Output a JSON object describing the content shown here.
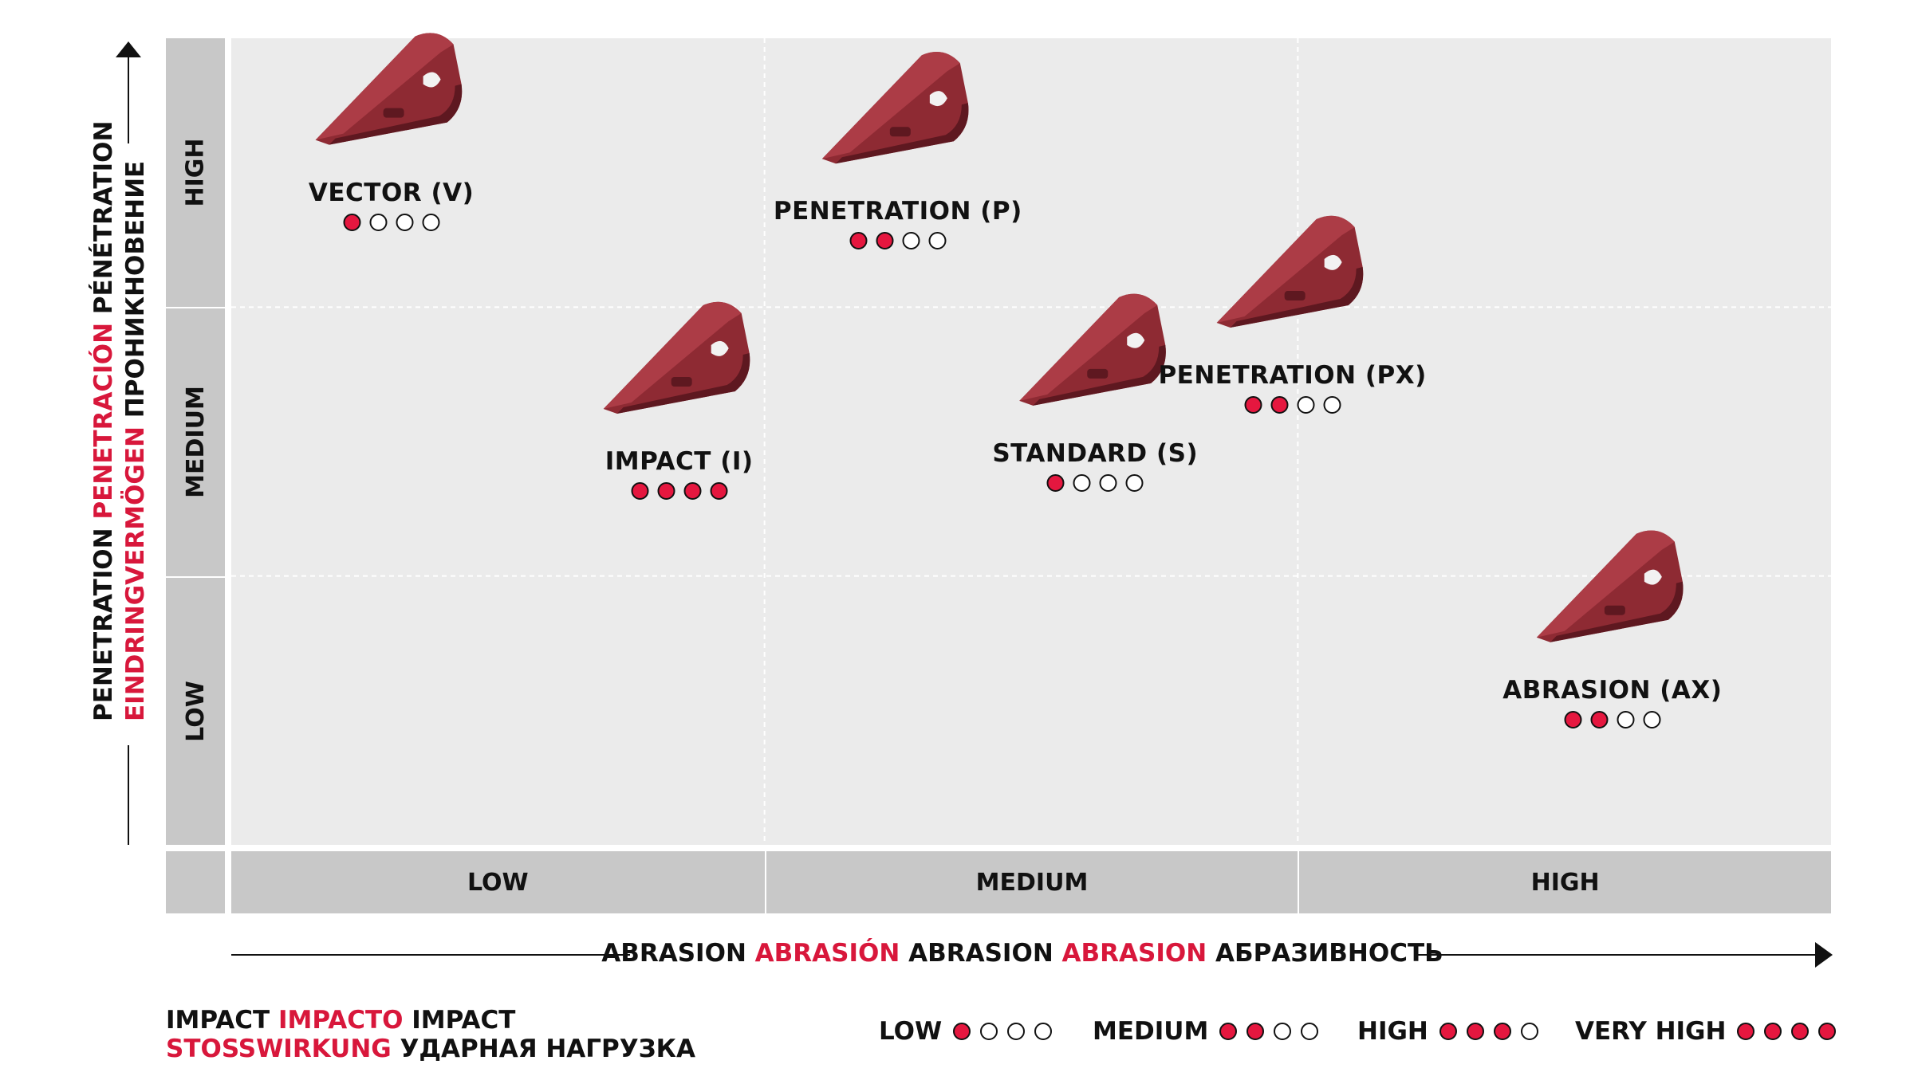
{
  "chart_data": {
    "type": "scatter",
    "title": "",
    "xlabel_parts": [
      {
        "text": "ABRASION",
        "accent": false
      },
      {
        "text": "ABRASIÓN",
        "accent": true
      },
      {
        "text": "ABRASION",
        "accent": false
      },
      {
        "text": "ABRASION",
        "accent": true
      },
      {
        "text": "АБРАЗИВНОСТЬ",
        "accent": false
      }
    ],
    "ylabel_line1": [
      {
        "text": "PENETRATION",
        "accent": false
      },
      {
        "text": "PENETRACIÓN",
        "accent": true
      },
      {
        "text": "PÉNÉTRATION",
        "accent": false
      }
    ],
    "ylabel_line2": [
      {
        "text": "EINDRINGVERMÖGEN",
        "accent": true
      },
      {
        "text": "ПРОНИКНОВЕНИЕ",
        "accent": false
      }
    ],
    "x_categories": [
      "LOW",
      "MEDIUM",
      "HIGH"
    ],
    "y_categories": [
      "LOW",
      "MEDIUM",
      "HIGH"
    ],
    "xlim": [
      0,
      3
    ],
    "ylim": [
      0,
      3
    ],
    "grid": true,
    "points": [
      {
        "name": "VECTOR (V)",
        "x": 0.3,
        "y": 2.42,
        "impact": 1
      },
      {
        "name": "PENETRATION (P)",
        "x": 1.25,
        "y": 2.35,
        "impact": 2
      },
      {
        "name": "IMPACT (I)",
        "x": 0.84,
        "y": 1.42,
        "impact": 4
      },
      {
        "name": "STANDARD (S)",
        "x": 1.62,
        "y": 1.45,
        "impact": 1
      },
      {
        "name": "PENETRATION (PX)",
        "x": 1.99,
        "y": 1.74,
        "impact": 2
      },
      {
        "name": "ABRASION (AX)",
        "x": 2.59,
        "y": 0.57,
        "impact": 2
      }
    ],
    "impact_scale_max": 4,
    "impact_title_line1": [
      {
        "text": "IMPACT",
        "accent": false
      },
      {
        "text": "IMPACTO",
        "accent": true
      },
      {
        "text": "IMPACT",
        "accent": false
      }
    ],
    "impact_title_line2": [
      {
        "text": "STOSSWIRKUNG",
        "accent": true
      },
      {
        "text": "УДАРНАЯ НАГРУЗКА",
        "accent": false
      }
    ],
    "impact_legend": [
      {
        "label": "LOW",
        "level": 1
      },
      {
        "label": "MEDIUM",
        "level": 2
      },
      {
        "label": "HIGH",
        "level": 3
      },
      {
        "label": "VERY HIGH",
        "level": 4
      }
    ]
  },
  "colors": {
    "accent": "#d8173b",
    "dot_fill": "#e5173f",
    "plot_bg": "#ebebeb",
    "band_bg": "#c8c8c8",
    "tooth": "#8e2a33",
    "tooth_light": "#b2404a",
    "tooth_dark": "#5e1820"
  },
  "icons": {
    "tooth": "bucket-tooth-icon",
    "axis_arrow": "arrow-icon"
  }
}
